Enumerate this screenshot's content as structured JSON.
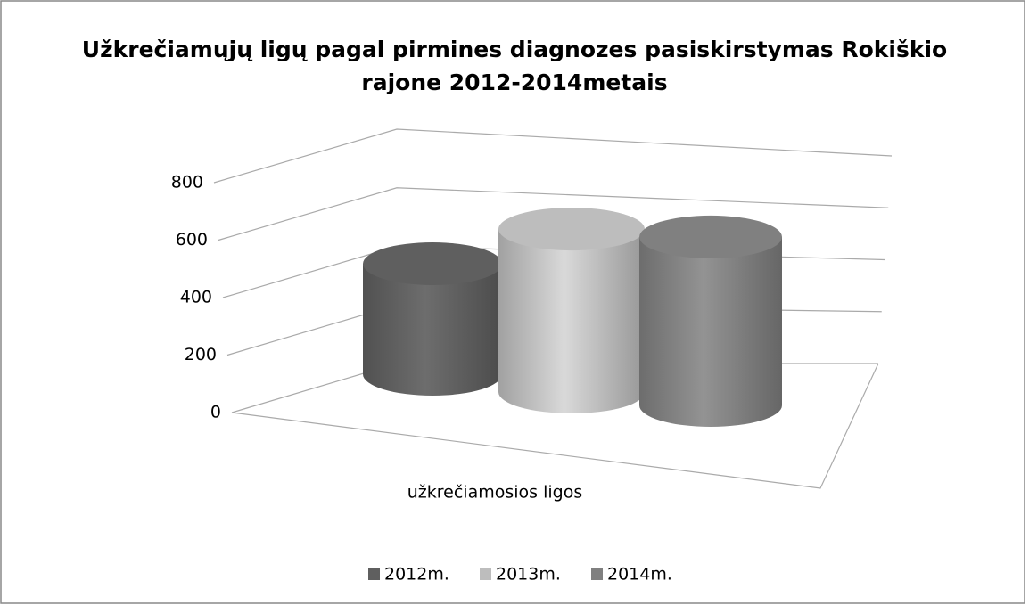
{
  "chart_data": {
    "type": "bar3d-cylinder",
    "title": "Užkrečiamųjų ligų pagal pirmines diagnozes pasiskirstymas Rokiškio rajone 2012-2014metais",
    "categories": [
      "užkrečiamosios ligos"
    ],
    "series": [
      {
        "name": "2012m.",
        "color": "#5f5f5f",
        "values": [
          400
        ]
      },
      {
        "name": "2013m.",
        "color": "#bdbdbd",
        "values": [
          590
        ]
      },
      {
        "name": "2014m.",
        "color": "#808080",
        "values": [
          610
        ]
      }
    ],
    "ylim": [
      0,
      800
    ],
    "yticks": [
      0,
      200,
      400,
      600,
      800
    ],
    "grid": true,
    "legend": "bottom"
  }
}
